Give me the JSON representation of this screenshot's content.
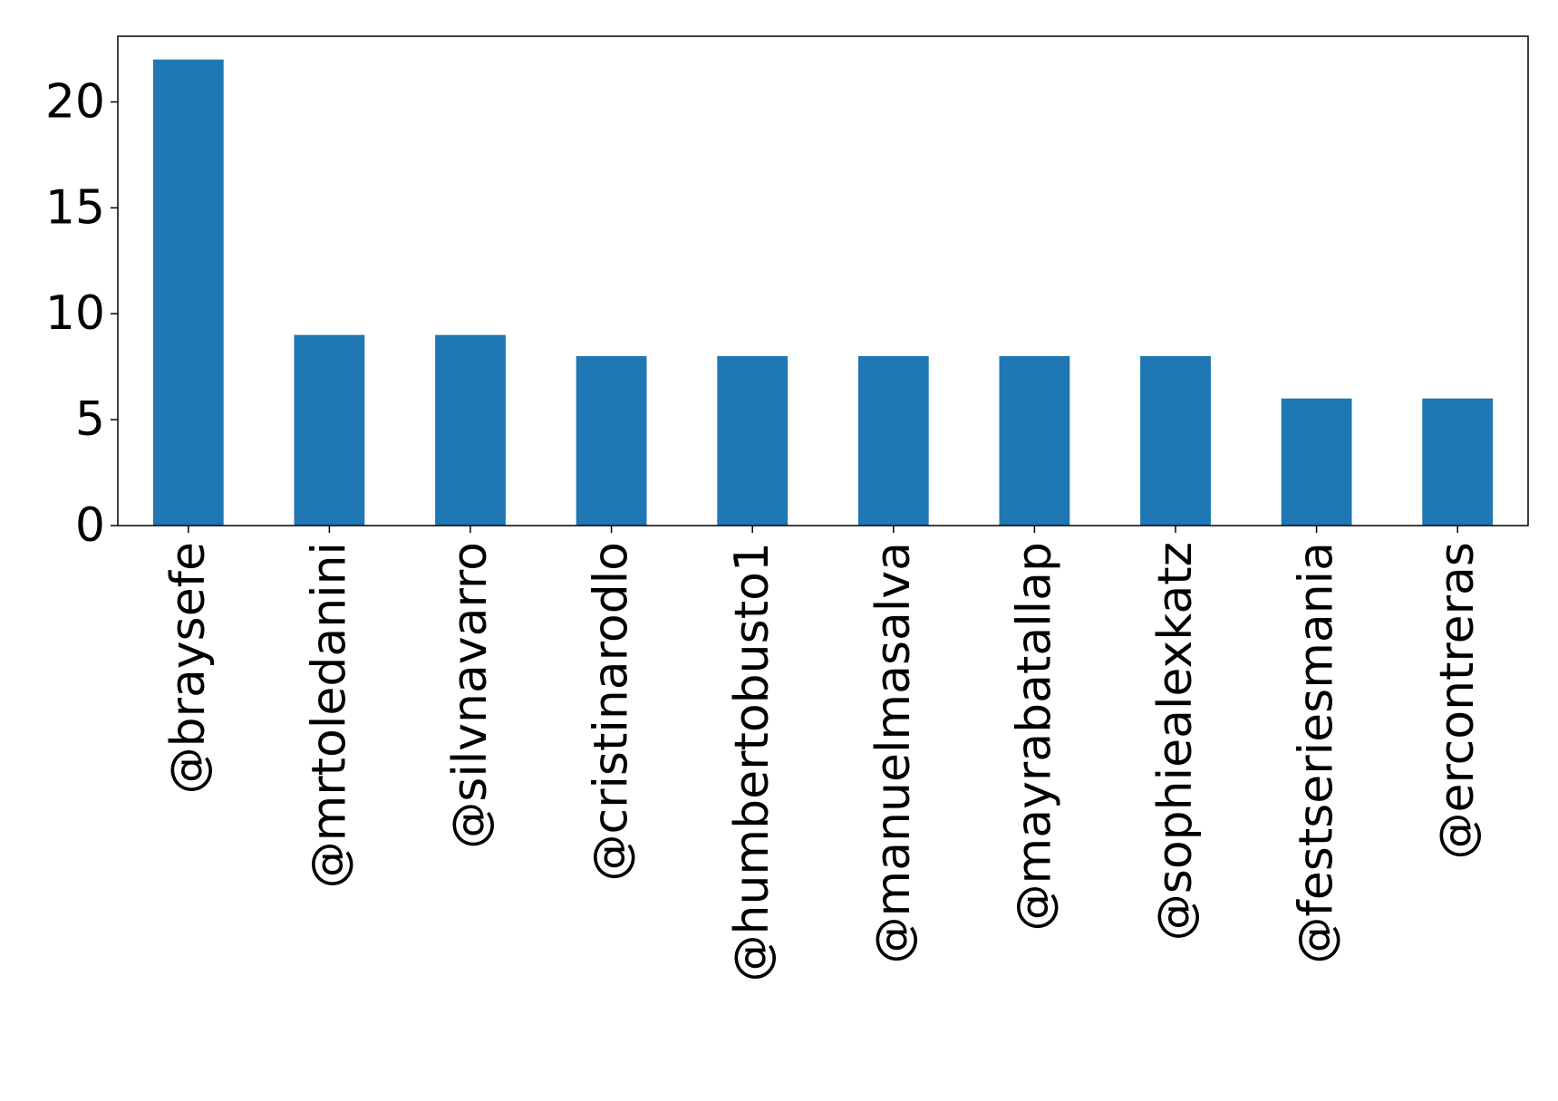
{
  "chart_data": {
    "type": "bar",
    "categories": [
      "@braysefe",
      "@mrtoledanini",
      "@silvnavarro",
      "@cristinarodlo",
      "@humbertobusto1",
      "@manuelmasalva",
      "@mayrabatallap",
      "@sophiealexkatz",
      "@festseriesmania",
      "@ercontreras"
    ],
    "values": [
      22,
      9,
      9,
      8,
      8,
      8,
      8,
      8,
      6,
      6
    ],
    "yticks": [
      "0",
      "5",
      "10",
      "15",
      "20"
    ],
    "ylim": [
      0,
      23.1
    ],
    "xlabel": "",
    "ylabel": "",
    "grid": false,
    "legend": "none",
    "bar_color": "#1f77b4"
  }
}
